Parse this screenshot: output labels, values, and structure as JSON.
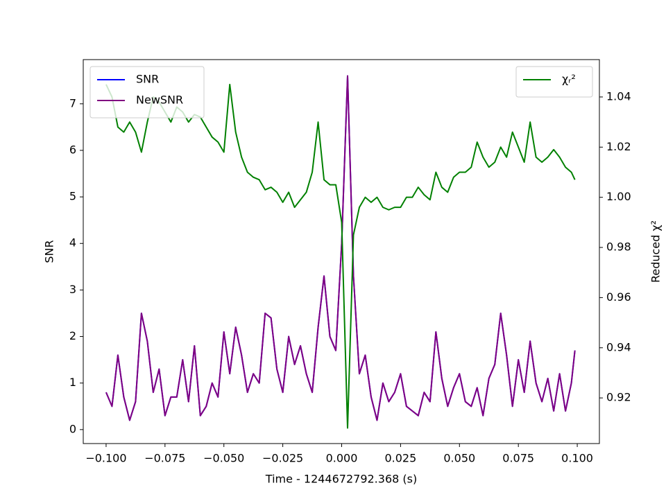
{
  "chart_data": {
    "type": "line",
    "xlabel": "Time - 1244672792.368 (s)",
    "ylabel": "SNR",
    "y2label": "Reduced χ²",
    "xlim": [
      -0.1097,
      0.1094
    ],
    "ylim": [
      -0.3,
      7.95
    ],
    "y2lim": [
      0.9018,
      1.0549
    ],
    "xticks": [
      {
        "value": -0.1,
        "label": "−0.100"
      },
      {
        "value": -0.075,
        "label": "−0.075"
      },
      {
        "value": -0.05,
        "label": "−0.050"
      },
      {
        "value": -0.025,
        "label": "−0.025"
      },
      {
        "value": 0,
        "label": "0.000"
      },
      {
        "value": 0.025,
        "label": "0.025"
      },
      {
        "value": 0.05,
        "label": "0.050"
      },
      {
        "value": 0.075,
        "label": "0.075"
      },
      {
        "value": 0.1,
        "label": "0.100"
      }
    ],
    "yticks": [
      0,
      1,
      2,
      3,
      4,
      5,
      6,
      7
    ],
    "y2ticks": [
      0.92,
      0.94,
      0.96,
      0.98,
      {
        "value": 1.0,
        "label": "1.00"
      },
      1.02,
      1.04
    ],
    "legend": "upper left",
    "y2_legend": "upper right",
    "x": [
      -0.1,
      -0.0975,
      -0.095,
      -0.0925,
      -0.09,
      -0.0875,
      -0.085,
      -0.0825,
      -0.08,
      -0.0775,
      -0.075,
      -0.0725,
      -0.07,
      -0.0675,
      -0.065,
      -0.0625,
      -0.06,
      -0.0575,
      -0.055,
      -0.0525,
      -0.05,
      -0.0475,
      -0.045,
      -0.0425,
      -0.04,
      -0.0375,
      -0.035,
      -0.0325,
      -0.03,
      -0.0275,
      -0.025,
      -0.0225,
      -0.02,
      -0.0175,
      -0.015,
      -0.0125,
      -0.01,
      -0.0075,
      -0.005,
      -0.0025,
      0,
      0.0025,
      0.005,
      0.0075,
      0.01,
      0.0125,
      0.015,
      0.0175,
      0.02,
      0.0225,
      0.025,
      0.0275,
      0.03,
      0.0325,
      0.035,
      0.0375,
      0.04,
      0.0425,
      0.045,
      0.0475,
      0.05,
      0.0525,
      0.055,
      0.0575,
      0.06,
      0.0625,
      0.065,
      0.0675,
      0.07,
      0.0725,
      0.075,
      0.0775,
      0.08,
      0.0825,
      0.085,
      0.0875,
      0.09,
      0.0925,
      0.095,
      0.0975,
      0.099
    ],
    "series": [
      {
        "name": "SNR",
        "color": "#0000ff",
        "values": [
          0.8,
          0.5,
          1.6,
          0.7,
          0.2,
          0.6,
          2.5,
          1.9,
          0.8,
          1.3,
          0.3,
          0.7,
          0.7,
          1.5,
          0.6,
          1.8,
          0.3,
          0.5,
          1.0,
          0.7,
          2.1,
          1.2,
          2.2,
          1.6,
          0.8,
          1.2,
          1.0,
          2.5,
          2.4,
          1.3,
          0.8,
          2.0,
          1.4,
          1.8,
          1.2,
          0.8,
          2.2,
          3.3,
          2.0,
          1.7,
          4.0,
          7.6,
          3.3,
          1.2,
          1.6,
          0.7,
          0.2,
          1.0,
          0.6,
          0.8,
          1.2,
          0.5,
          0.4,
          0.3,
          0.8,
          0.6,
          2.1,
          1.1,
          0.5,
          0.9,
          1.2,
          0.6,
          0.5,
          0.9,
          0.3,
          1.1,
          1.4,
          2.5,
          1.6,
          0.5,
          1.5,
          0.8,
          1.9,
          1.0,
          0.6,
          1.1,
          0.4,
          1.2,
          0.4,
          1.0,
          1.7
        ]
      },
      {
        "name": "NewSNR",
        "color": "#800080",
        "values": [
          0.8,
          0.5,
          1.6,
          0.7,
          0.2,
          0.6,
          2.5,
          1.9,
          0.8,
          1.3,
          0.3,
          0.7,
          0.7,
          1.5,
          0.6,
          1.8,
          0.3,
          0.5,
          1.0,
          0.7,
          2.1,
          1.2,
          2.2,
          1.6,
          0.8,
          1.2,
          1.0,
          2.5,
          2.4,
          1.3,
          0.8,
          2.0,
          1.4,
          1.8,
          1.2,
          0.8,
          2.2,
          3.3,
          2.0,
          1.7,
          4.0,
          7.6,
          3.3,
          1.2,
          1.6,
          0.7,
          0.2,
          1.0,
          0.6,
          0.8,
          1.2,
          0.5,
          0.4,
          0.3,
          0.8,
          0.6,
          2.1,
          1.1,
          0.5,
          0.9,
          1.2,
          0.6,
          0.5,
          0.9,
          0.3,
          1.1,
          1.4,
          2.5,
          1.6,
          0.5,
          1.5,
          0.8,
          1.9,
          1.0,
          0.6,
          1.1,
          0.4,
          1.2,
          0.4,
          1.0,
          1.7
        ]
      },
      {
        "name": "χᵣ²",
        "color": "#008000",
        "axis": "y2",
        "values": [
          1.045,
          1.04,
          1.028,
          1.026,
          1.03,
          1.026,
          1.018,
          1.03,
          1.04,
          1.038,
          1.034,
          1.03,
          1.036,
          1.034,
          1.03,
          1.033,
          1.032,
          1.028,
          1.024,
          1.022,
          1.018,
          1.045,
          1.026,
          1.016,
          1.01,
          1.008,
          1.007,
          1.003,
          1.004,
          1.002,
          0.998,
          1.002,
          0.996,
          0.999,
          1.002,
          1.01,
          1.03,
          1.007,
          1.005,
          1.005,
          0.99,
          0.908,
          0.985,
          0.996,
          1.0,
          0.998,
          1.0,
          0.996,
          0.995,
          0.996,
          0.996,
          1.0,
          1.0,
          1.004,
          1.001,
          0.999,
          1.01,
          1.004,
          1.002,
          1.008,
          1.01,
          1.01,
          1.012,
          1.022,
          1.016,
          1.012,
          1.014,
          1.02,
          1.016,
          1.026,
          1.02,
          1.014,
          1.03,
          1.016,
          1.014,
          1.016,
          1.019,
          1.016,
          1.012,
          1.01,
          1.007
        ]
      }
    ]
  }
}
